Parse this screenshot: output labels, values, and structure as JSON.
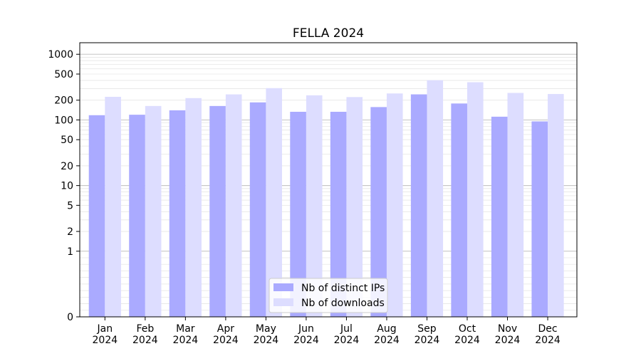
{
  "chart_data": {
    "type": "bar",
    "title": "FELLA 2024",
    "xlabel": "",
    "ylabel": "",
    "yscale": "symlog",
    "ylim": [
      0,
      1500
    ],
    "y_ticks": [
      0,
      1,
      2,
      5,
      10,
      20,
      50,
      100,
      200,
      500,
      1000
    ],
    "y_tick_labels": [
      "0",
      "1",
      "2",
      "5",
      "10",
      "20",
      "50",
      "100",
      "200",
      "500",
      "1000"
    ],
    "grid": "horizontal",
    "legend_position": "bottom-center",
    "categories": [
      {
        "month": "Jan",
        "year": "2024"
      },
      {
        "month": "Feb",
        "year": "2024"
      },
      {
        "month": "Mar",
        "year": "2024"
      },
      {
        "month": "Apr",
        "year": "2024"
      },
      {
        "month": "May",
        "year": "2024"
      },
      {
        "month": "Jun",
        "year": "2024"
      },
      {
        "month": "Jul",
        "year": "2024"
      },
      {
        "month": "Aug",
        "year": "2024"
      },
      {
        "month": "Sep",
        "year": "2024"
      },
      {
        "month": "Oct",
        "year": "2024"
      },
      {
        "month": "Nov",
        "year": "2024"
      },
      {
        "month": "Dec",
        "year": "2024"
      }
    ],
    "series": [
      {
        "name": "Nb of distinct IPs",
        "color": "#aaaaff",
        "values": [
          118,
          120,
          140,
          163,
          185,
          133,
          133,
          157,
          245,
          178,
          112,
          95
        ]
      },
      {
        "name": "Nb of downloads",
        "color": "#ddddff",
        "values": [
          225,
          163,
          215,
          245,
          305,
          237,
          223,
          253,
          402,
          375,
          258,
          248
        ]
      }
    ]
  }
}
